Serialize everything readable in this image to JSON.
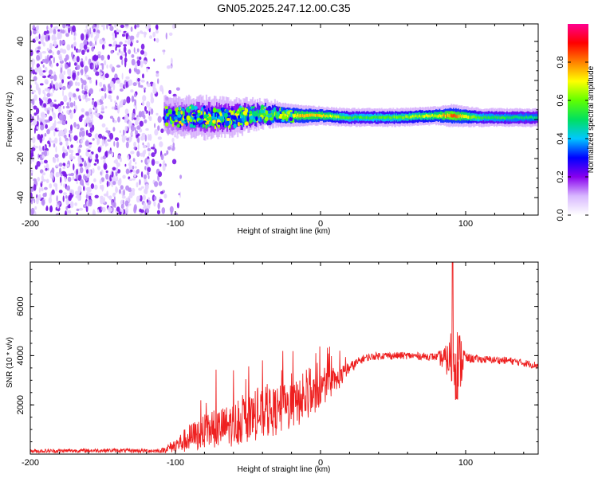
{
  "title": "GN05.2025.247.12.00.C35",
  "chart_data": [
    {
      "type": "heatmap",
      "xlabel": "Height of straight line (km)",
      "ylabel": "Frequency (Hz)",
      "xlim": [
        -200,
        150
      ],
      "ylim": [
        -49,
        49
      ],
      "xticks": [
        -200,
        -100,
        0,
        100
      ],
      "yticks": [
        -40,
        -20,
        0,
        20,
        40
      ],
      "colorbar": {
        "label": "Normalized spectral amplitude",
        "range": [
          0,
          1
        ],
        "ticks": [
          "0.0",
          "0.2",
          "0.4",
          "0.6",
          "0.8"
        ],
        "colors": [
          "#ffffff",
          "#d8b8ff",
          "#8800ee",
          "#0000ff",
          "#00c8ff",
          "#00e060",
          "#60ff00",
          "#ffff00",
          "#ff8000",
          "#ff0000",
          "#ff0090"
        ]
      },
      "noise_region_km": [
        -200,
        -108
      ],
      "signal_band": [
        {
          "x": -108,
          "f": 2,
          "amp": 0.3,
          "width": 8
        },
        {
          "x": -80,
          "f": 1,
          "amp": 0.4,
          "width": 9
        },
        {
          "x": -60,
          "f": 1,
          "amp": 0.45,
          "width": 8
        },
        {
          "x": -40,
          "f": 3,
          "amp": 0.55,
          "width": 6
        },
        {
          "x": -20,
          "f": 2,
          "amp": 0.75,
          "width": 5
        },
        {
          "x": 0,
          "f": 2,
          "amp": 0.75,
          "width": 4
        },
        {
          "x": 20,
          "f": 1,
          "amp": 0.55,
          "width": 4
        },
        {
          "x": 50,
          "f": 1,
          "amp": 0.6,
          "width": 4
        },
        {
          "x": 80,
          "f": 2,
          "amp": 0.7,
          "width": 4
        },
        {
          "x": 90,
          "f": 2,
          "amp": 0.85,
          "width": 5
        },
        {
          "x": 110,
          "f": 1,
          "amp": 0.55,
          "width": 4
        },
        {
          "x": 150,
          "f": 1,
          "amp": 0.5,
          "width": 4
        }
      ]
    },
    {
      "type": "line",
      "xlabel": "Height of straight line (km)",
      "ylabel": "SNR (10 * v/v)",
      "xlim": [
        -200,
        150
      ],
      "ylim": [
        0,
        7800
      ],
      "xticks": [
        -200,
        -100,
        0,
        100
      ],
      "yticks": [
        2000,
        4000,
        6000
      ],
      "line_color": "#ee2020",
      "series": [
        {
          "name": "SNR",
          "x": [
            -200,
            -150,
            -110,
            -100,
            -90,
            -80,
            -70,
            -60,
            -50,
            -40,
            -30,
            -20,
            -10,
            0,
            10,
            20,
            30,
            40,
            60,
            80,
            88,
            92,
            95,
            98,
            100,
            110,
            130,
            150
          ],
          "y": [
            120,
            150,
            130,
            350,
            650,
            900,
            1050,
            1200,
            1400,
            1600,
            1750,
            1950,
            2200,
            2600,
            2900,
            3500,
            3900,
            4000,
            4000,
            3950,
            3800,
            4000,
            3600,
            3900,
            3900,
            3850,
            3800,
            3600
          ],
          "noise": [
            80,
            80,
            80,
            300,
            600,
            700,
            800,
            900,
            900,
            1000,
            1000,
            1000,
            900,
            700,
            500,
            250,
            150,
            150,
            150,
            150,
            700,
            1800,
            1500,
            900,
            200,
            150,
            150,
            150
          ]
        }
      ],
      "spike": {
        "x": 91,
        "y": 7800
      }
    }
  ]
}
